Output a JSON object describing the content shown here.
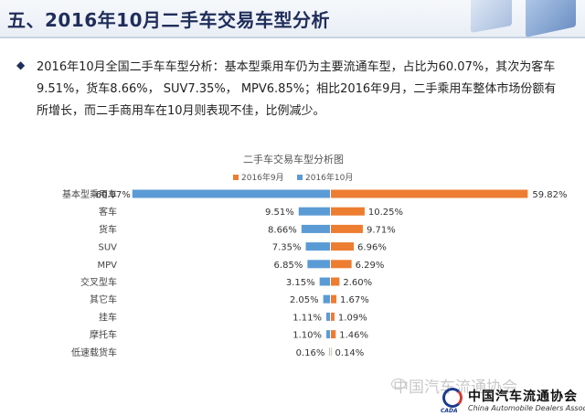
{
  "header": {
    "title": "五、2016年10月二手车交易车型分析"
  },
  "summary": {
    "bullet_icon": "diamond-bullet-icon",
    "text": "2016年10月全国二手车车型分析：基本型乘用车仍为主要流通车型，占比为60.07%，其次为客车9.51%，货车8.66%， SUV7.35%， MPV6.85%；相比2016年9月，二手乘用车整体市场份额有所增长，而二手商用车在10月则表现不佳，比例减少。"
  },
  "watermark": {
    "text": "中国汽车流通协会",
    "icon": "wechat-icon"
  },
  "logo": {
    "abbr": "CADA",
    "cn": "中国汽车流通协会",
    "en": "China Automobile Dealers Association"
  },
  "chart_data": {
    "type": "bar",
    "orientation": "horizontal-butterfly",
    "title": "二手车交易车型分析图",
    "categories": [
      "基本型乘用车",
      "客车",
      "货车",
      "SUV",
      "MPV",
      "交叉型车",
      "其它车",
      "挂车",
      "摩托车",
      "低速载货车"
    ],
    "series": [
      {
        "name": "2016年9月",
        "side": "right",
        "color": "#ed7d31",
        "values": [
          59.82,
          10.25,
          9.71,
          6.96,
          6.29,
          2.6,
          1.67,
          1.09,
          1.46,
          0.14
        ],
        "labels": [
          "59.82%",
          "10.25%",
          "9.71%",
          "6.96%",
          "6.29%",
          "2.60%",
          "1.67%",
          "1.09%",
          "1.46%",
          "0.14%"
        ]
      },
      {
        "name": "2016年10月",
        "side": "left",
        "color": "#5b9bd5",
        "values": [
          60.07,
          9.51,
          8.66,
          7.35,
          6.85,
          3.15,
          2.05,
          1.11,
          1.1,
          0.16
        ],
        "labels": [
          "60.07%",
          "9.51%",
          "8.66%",
          "7.35%",
          "6.85%",
          "3.15%",
          "2.05%",
          "1.11%",
          "1.10%",
          "0.16%"
        ]
      }
    ],
    "legend_position": "top",
    "grid": false
  }
}
